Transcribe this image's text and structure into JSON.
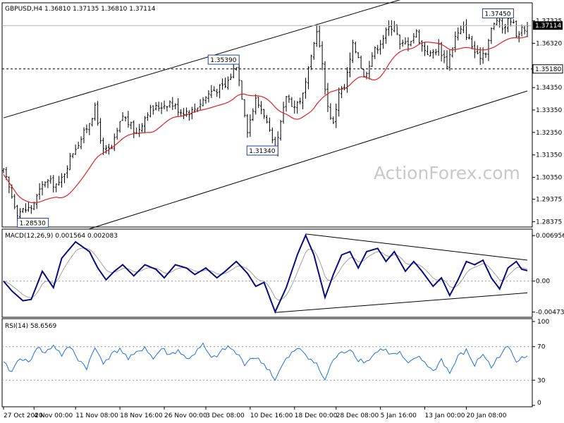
{
  "chart_data": {
    "type": "candlestick",
    "symbol_header": "GBPUSD,H4 1.36810 1.37135 1.36810 1.37114",
    "watermark": "ActionForex.com",
    "price_panel": {
      "ylim": [
        1.282,
        1.38
      ],
      "y_ticks": [
        "1.37325",
        "1.36320",
        "1.35180",
        "1.34350",
        "1.33350",
        "1.32350",
        "1.31350",
        "1.30350",
        "1.29375",
        "1.28375"
      ],
      "current_price": "1.37114",
      "horizontal_level": "1.35180",
      "reference_close": "1.37114",
      "annotations": [
        {
          "label": "1.37450",
          "bar": 183,
          "price": 1.3745
        },
        {
          "label": "1.35390",
          "bar": 84,
          "price": 1.3539
        },
        {
          "label": "1.31340",
          "bar": 98,
          "price": 1.3134
        },
        {
          "label": "1.28530",
          "bar": 5,
          "price": 1.2853
        }
      ],
      "channel": {
        "upper": [
          [
            0,
            1.33
          ],
          [
            189,
            1.3995
          ]
        ],
        "lower": [
          [
            0,
            1.2685
          ],
          [
            189,
            1.342
          ]
        ]
      },
      "moving_average": "red",
      "series": {
        "anchors": [
          [
            0,
            1.306
          ],
          [
            5,
            1.288
          ],
          [
            10,
            1.29
          ],
          [
            15,
            1.302
          ],
          [
            20,
            1.3
          ],
          [
            25,
            1.315
          ],
          [
            29,
            1.323
          ],
          [
            33,
            1.334
          ],
          [
            36,
            1.315
          ],
          [
            39,
            1.316
          ],
          [
            43,
            1.331
          ],
          [
            48,
            1.323
          ],
          [
            52,
            1.333
          ],
          [
            56,
            1.335
          ],
          [
            60,
            1.337
          ],
          [
            64,
            1.333
          ],
          [
            68,
            1.333
          ],
          [
            72,
            1.338
          ],
          [
            75,
            1.342
          ],
          [
            80,
            1.344
          ],
          [
            84,
            1.3539
          ],
          [
            86,
            1.34
          ],
          [
            88,
            1.325
          ],
          [
            91,
            1.338
          ],
          [
            94,
            1.332
          ],
          [
            98,
            1.314
          ],
          [
            102,
            1.34
          ],
          [
            105,
            1.335
          ],
          [
            108,
            1.34
          ],
          [
            111,
            1.356
          ],
          [
            113,
            1.37
          ],
          [
            115,
            1.353
          ],
          [
            117,
            1.335
          ],
          [
            119,
            1.327
          ],
          [
            121,
            1.342
          ],
          [
            123,
            1.343
          ],
          [
            126,
            1.362
          ],
          [
            128,
            1.358
          ],
          [
            130,
            1.348
          ],
          [
            133,
            1.358
          ],
          [
            136,
            1.364
          ],
          [
            139,
            1.37
          ],
          [
            141,
            1.372
          ],
          [
            143,
            1.362
          ],
          [
            146,
            1.364
          ],
          [
            149,
            1.368
          ],
          [
            151,
            1.362
          ],
          [
            154,
            1.358
          ],
          [
            157,
            1.362
          ],
          [
            160,
            1.354
          ],
          [
            163,
            1.366
          ],
          [
            166,
            1.37
          ],
          [
            169,
            1.362
          ],
          [
            171,
            1.357
          ],
          [
            174,
            1.36
          ],
          [
            176,
            1.369
          ],
          [
            178,
            1.374
          ],
          [
            180,
            1.37
          ],
          [
            183,
            1.3745
          ],
          [
            185,
            1.368
          ],
          [
            187,
            1.369
          ],
          [
            189,
            1.3711
          ]
        ]
      }
    },
    "macd_panel": {
      "title": "MACD(12,26,9) 0.001564 0.002083",
      "ylim": [
        -0.0052,
        0.0074
      ],
      "y_ticks": [
        "0.006956",
        "0.00",
        "-0.004736"
      ],
      "macd_anchors": [
        [
          0,
          0.0
        ],
        [
          3,
          -0.0015
        ],
        [
          7,
          -0.003
        ],
        [
          10,
          -0.0028
        ],
        [
          14,
          0.0015
        ],
        [
          18,
          -0.001
        ],
        [
          21,
          0.0035
        ],
        [
          26,
          0.006
        ],
        [
          31,
          0.0045
        ],
        [
          34,
          0.002
        ],
        [
          37,
          0.0002
        ],
        [
          40,
          0.0015
        ],
        [
          43,
          0.0025
        ],
        [
          47,
          0.0008
        ],
        [
          51,
          0.0025
        ],
        [
          55,
          0.0018
        ],
        [
          58,
          0.0005
        ],
        [
          62,
          0.0025
        ],
        [
          66,
          0.002
        ],
        [
          69,
          0.001
        ],
        [
          73,
          0.002
        ],
        [
          77,
          0.0005
        ],
        [
          80,
          0.0015
        ],
        [
          84,
          0.003
        ],
        [
          88,
          0.0012
        ],
        [
          91,
          -0.0008
        ],
        [
          94,
          -0.0002
        ],
        [
          98,
          -0.0047
        ],
        [
          102,
          -0.001
        ],
        [
          106,
          0.004
        ],
        [
          109,
          0.007
        ],
        [
          112,
          0.004
        ],
        [
          116,
          -0.0025
        ],
        [
          119,
          0.001
        ],
        [
          122,
          0.004
        ],
        [
          125,
          0.0045
        ],
        [
          128,
          0.002
        ],
        [
          131,
          0.0045
        ],
        [
          135,
          0.005
        ],
        [
          138,
          0.003
        ],
        [
          141,
          0.0045
        ],
        [
          145,
          0.0015
        ],
        [
          148,
          0.003
        ],
        [
          151,
          0.0015
        ],
        [
          155,
          -0.0008
        ],
        [
          158,
          0.0005
        ],
        [
          161,
          -0.0022
        ],
        [
          164,
          0.0002
        ],
        [
          167,
          0.003
        ],
        [
          170,
          0.0025
        ],
        [
          173,
          0.0032
        ],
        [
          176,
          0.0005
        ],
        [
          179,
          -0.0012
        ],
        [
          182,
          0.002
        ],
        [
          185,
          0.003
        ],
        [
          187,
          0.0018
        ],
        [
          189,
          0.0016
        ]
      ],
      "triangle": {
        "upper": [
          [
            109,
            0.0072
          ],
          [
            189,
            0.0032
          ]
        ],
        "lower": [
          [
            98,
            -0.0048
          ],
          [
            189,
            -0.0018
          ]
        ]
      }
    },
    "rsi_panel": {
      "title": "RSI(14) 58.6569",
      "ylim": [
        0,
        100
      ],
      "y_ticks": [
        "100",
        "70",
        "30",
        "0"
      ],
      "levels": [
        70,
        30
      ],
      "rsi_anchors": [
        [
          0,
          50
        ],
        [
          3,
          40
        ],
        [
          6,
          58
        ],
        [
          9,
          50
        ],
        [
          12,
          70
        ],
        [
          15,
          62
        ],
        [
          18,
          72
        ],
        [
          21,
          60
        ],
        [
          24,
          70
        ],
        [
          27,
          55
        ],
        [
          30,
          45
        ],
        [
          33,
          68
        ],
        [
          36,
          52
        ],
        [
          39,
          60
        ],
        [
          42,
          68
        ],
        [
          45,
          55
        ],
        [
          48,
          62
        ],
        [
          51,
          70
        ],
        [
          54,
          55
        ],
        [
          57,
          68
        ],
        [
          60,
          60
        ],
        [
          63,
          66
        ],
        [
          66,
          55
        ],
        [
          69,
          62
        ],
        [
          72,
          72
        ],
        [
          75,
          55
        ],
        [
          78,
          62
        ],
        [
          81,
          70
        ],
        [
          84,
          62
        ],
        [
          87,
          50
        ],
        [
          90,
          58
        ],
        [
          93,
          52
        ],
        [
          96,
          42
        ],
        [
          98,
          30
        ],
        [
          101,
          50
        ],
        [
          104,
          62
        ],
        [
          107,
          68
        ],
        [
          110,
          58
        ],
        [
          113,
          48
        ],
        [
          116,
          30
        ],
        [
          119,
          55
        ],
        [
          122,
          62
        ],
        [
          125,
          68
        ],
        [
          128,
          55
        ],
        [
          131,
          52
        ],
        [
          134,
          62
        ],
        [
          137,
          68
        ],
        [
          140,
          60
        ],
        [
          143,
          62
        ],
        [
          146,
          48
        ],
        [
          149,
          58
        ],
        [
          152,
          52
        ],
        [
          155,
          40
        ],
        [
          158,
          55
        ],
        [
          161,
          38
        ],
        [
          164,
          58
        ],
        [
          167,
          65
        ],
        [
          170,
          48
        ],
        [
          173,
          62
        ],
        [
          176,
          45
        ],
        [
          179,
          60
        ],
        [
          182,
          70
        ],
        [
          185,
          52
        ],
        [
          187,
          60
        ],
        [
          189,
          59
        ]
      ]
    },
    "x_ticks": [
      {
        "label": "27 Oct 2020",
        "bar": 0
      },
      {
        "label": "4 Nov 00:00",
        "bar": 11
      },
      {
        "label": "11 Nov 08:00",
        "bar": 26
      },
      {
        "label": "18 Nov 16:00",
        "bar": 42
      },
      {
        "label": "26 Nov 00:00",
        "bar": 58
      },
      {
        "label": "3 Dec 08:00",
        "bar": 73
      },
      {
        "label": "10 Dec 16:00",
        "bar": 89
      },
      {
        "label": "18 Dec 00:00",
        "bar": 105
      },
      {
        "label": "28 Dec 08:00",
        "bar": 120
      },
      {
        "label": "5 Jan 16:00",
        "bar": 136
      },
      {
        "label": "13 Jan 00:00",
        "bar": 152
      },
      {
        "label": "20 Jan 08:00",
        "bar": 167
      }
    ]
  }
}
